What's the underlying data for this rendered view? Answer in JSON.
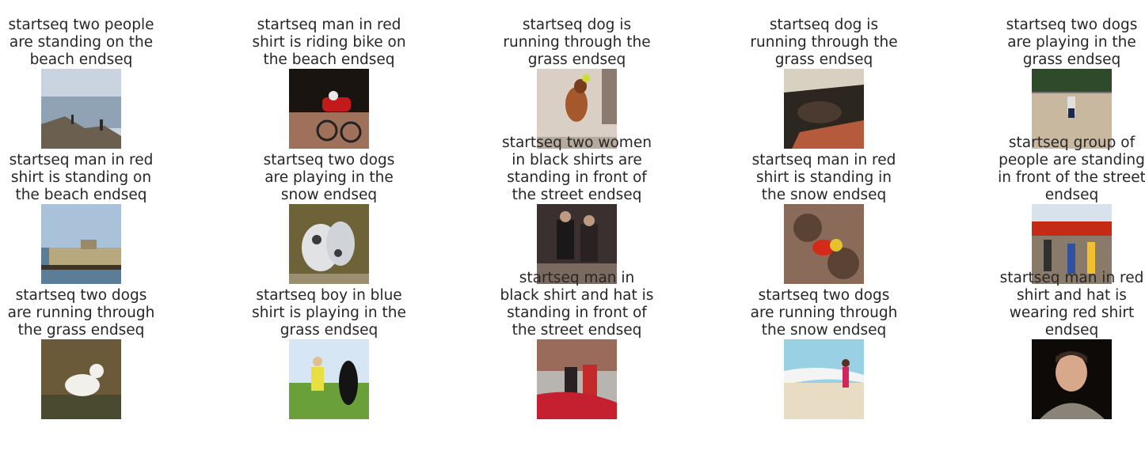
{
  "items": [
    {
      "caption": "startseq two people are standing on the beach endseq",
      "scene": "foggy-beach-cliff",
      "colors": [
        "#c9d4e0",
        "#8fa3b4",
        "#6b6050",
        "#2b2b2b"
      ]
    },
    {
      "caption": "startseq man in red shirt is riding bike on the beach endseq",
      "scene": "bmx-rider",
      "colors": [
        "#1a1410",
        "#a0715a",
        "#c21a1a",
        "#e8e8e8"
      ]
    },
    {
      "caption": "startseq dog is running through the grass endseq",
      "scene": "jumping-brown-dog",
      "colors": [
        "#d9cfc4",
        "#a5582c",
        "#7a3d1c",
        "#c8e034"
      ]
    },
    {
      "caption": "startseq dog is running through the grass endseq",
      "scene": "dog-in-car",
      "colors": [
        "#9a8a78",
        "#2c2620",
        "#b55a3a",
        "#d8d0c0"
      ]
    },
    {
      "caption": "startseq two dogs are playing in the grass endseq",
      "scene": "baseball-field",
      "colors": [
        "#2f4a2a",
        "#c8b8a0",
        "#e0e0e0",
        "#1c2a52"
      ]
    },
    {
      "caption": "startseq man in red shirt is standing on the beach endseq",
      "scene": "pier-water",
      "colors": [
        "#a9c2da",
        "#5b7d97",
        "#b8a880",
        "#3a3528"
      ]
    },
    {
      "caption": "startseq two dogs are playing in the snow endseq",
      "scene": "spotted-dogs",
      "colors": [
        "#6e6238",
        "#e0e2e4",
        "#3a3a40",
        "#9a9070"
      ]
    },
    {
      "caption": "startseq two women in black shirts are standing in front of the street endseq",
      "scene": "two-people-stage",
      "colors": [
        "#3a3030",
        "#1a1818",
        "#e0dcd4",
        "#7a6a60"
      ]
    },
    {
      "caption": "startseq man in red shirt is standing in the snow endseq",
      "scene": "rock-climber",
      "colors": [
        "#8a6a58",
        "#5a4234",
        "#d42a1a",
        "#e6c230"
      ]
    },
    {
      "caption": "startseq group of people are standing in front of the street endseq",
      "scene": "street-crowd",
      "colors": [
        "#d8e2ec",
        "#c42a14",
        "#f0c030",
        "#303030"
      ]
    },
    {
      "caption": "startseq two dogs are running through the grass endseq",
      "scene": "white-dog",
      "colors": [
        "#6a5a3a",
        "#f2f0ea",
        "#4a4a30",
        "#8a7a58"
      ]
    },
    {
      "caption": "startseq boy in blue shirt is playing in the grass endseq",
      "scene": "kneeling-person-dog",
      "colors": [
        "#d6e6f4",
        "#6aa03a",
        "#e8e040",
        "#141414"
      ]
    },
    {
      "caption": "startseq man in black shirt and hat is standing in front of the street endseq",
      "scene": "couple-red-car",
      "colors": [
        "#b8b4b0",
        "#c42a2a",
        "#2a2222",
        "#9a8a7a"
      ]
    },
    {
      "caption": "startseq two dogs are running through the snow endseq",
      "scene": "beach-girl",
      "colors": [
        "#9ad0e4",
        "#e8dcc4",
        "#f4f4f4",
        "#d4245a"
      ]
    },
    {
      "caption": "startseq man in red shirt and hat is wearing red shirt endseq",
      "scene": "man-portrait",
      "colors": [
        "#0e0a08",
        "#d8a88a",
        "#3a2a20",
        "#8a8478"
      ]
    }
  ]
}
